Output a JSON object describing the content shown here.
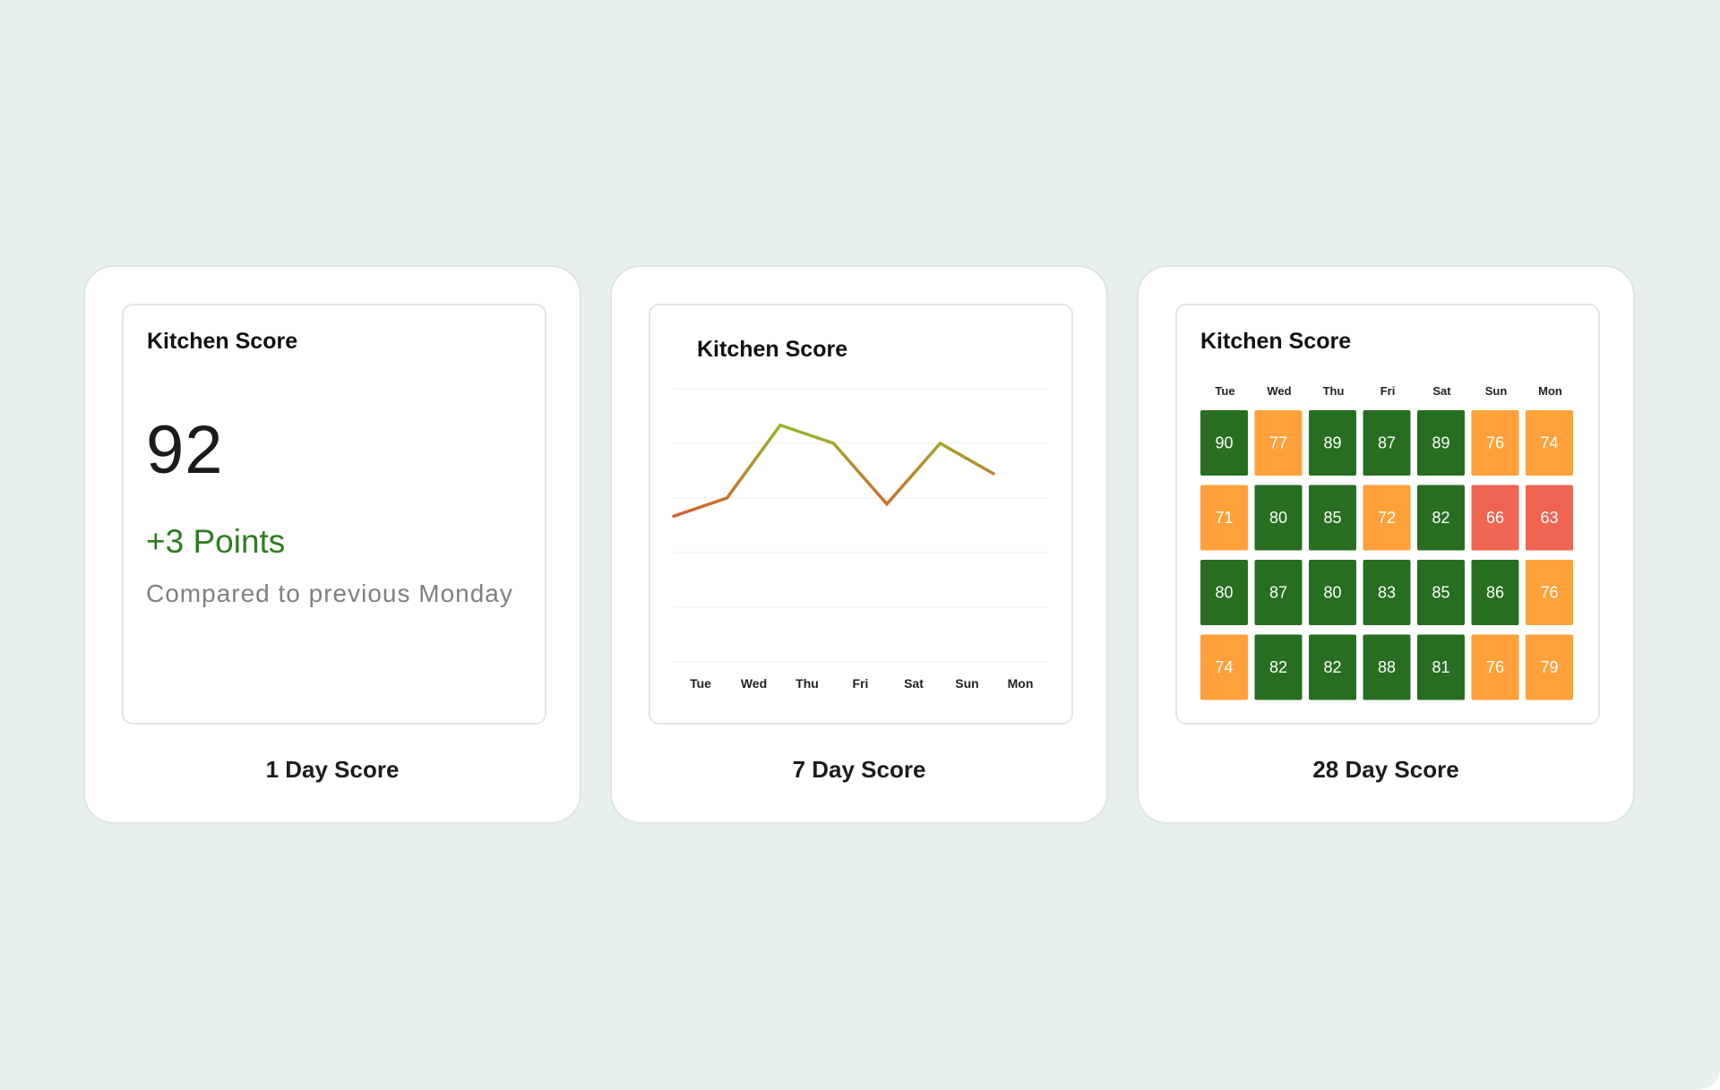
{
  "colors": {
    "background": "#e9f1ef",
    "good": "#276e21",
    "warn": "#ffa13a",
    "bad": "#f06552",
    "delta_positive": "#2d7d1f",
    "line_low": "#e64a2c",
    "line_high": "#8fbd2b"
  },
  "one_day": {
    "title": "Kitchen Score",
    "score": "92",
    "delta": "+3 Points",
    "comparison": "Compared to previous Monday",
    "caption": "1 Day Score"
  },
  "seven_day": {
    "title": "Kitchen Score",
    "caption": "7 Day Score"
  },
  "twenty_eight_day": {
    "title": "Kitchen Score",
    "caption": "28 Day Score"
  },
  "chart_data": [
    {
      "type": "line",
      "title": "Kitchen Score",
      "x": [
        "Tue",
        "Wed",
        "Thu",
        "Fri",
        "Sat",
        "Sun",
        "Mon"
      ],
      "series": [
        {
          "values": [
            74,
            77,
            89,
            86,
            76,
            86,
            81
          ]
        }
      ],
      "ylim": [
        50,
        95
      ],
      "grid": true,
      "xlabel": "",
      "ylabel": ""
    },
    {
      "type": "heatmap",
      "title": "Kitchen Score",
      "x": [
        "Tue",
        "Wed",
        "Thu",
        "Fri",
        "Sat",
        "Sun",
        "Mon"
      ],
      "values": [
        [
          90,
          77,
          89,
          87,
          89,
          76,
          74
        ],
        [
          71,
          80,
          85,
          72,
          82,
          66,
          63
        ],
        [
          80,
          87,
          80,
          83,
          85,
          86,
          76
        ],
        [
          74,
          82,
          82,
          88,
          81,
          76,
          79
        ]
      ]
    }
  ]
}
